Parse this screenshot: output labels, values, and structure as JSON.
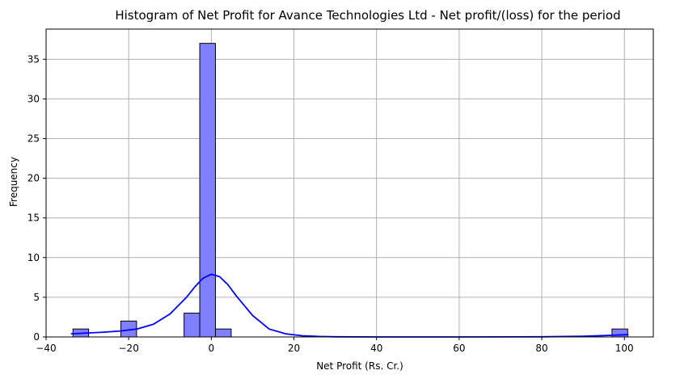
{
  "chart_data": {
    "type": "bar",
    "title": "Histogram of Net Profit for Avance Technologies Ltd - Net profit/(loss) for the period",
    "xlabel": "Net Profit (Rs. Cr.)",
    "ylabel": "Frequency",
    "xlim": [
      -40,
      107
    ],
    "ylim": [
      0,
      38.8
    ],
    "xticks": [
      -40,
      -20,
      0,
      20,
      40,
      60,
      80,
      100
    ],
    "yticks": [
      0,
      5,
      10,
      15,
      20,
      25,
      30,
      35
    ],
    "grid": true,
    "bin_width": 3.8,
    "bins": [
      {
        "x0": -33.5,
        "x1": -29.7,
        "count": 1
      },
      {
        "x0": -21.9,
        "x1": -18.1,
        "count": 2
      },
      {
        "x0": -6.6,
        "x1": -2.8,
        "count": 3
      },
      {
        "x0": -2.8,
        "x1": 1.0,
        "count": 37
      },
      {
        "x0": 1.0,
        "x1": 4.8,
        "count": 1
      },
      {
        "x0": 97.0,
        "x1": 100.8,
        "count": 1
      }
    ],
    "kde": {
      "x": [
        -34,
        -30,
        -26,
        -22,
        -18,
        -14,
        -10,
        -6,
        -4,
        -2,
        0,
        2,
        4,
        6,
        10,
        14,
        18,
        22,
        26,
        30,
        40,
        60,
        80,
        90,
        95,
        100,
        101
      ],
      "y": [
        0.4,
        0.5,
        0.6,
        0.75,
        1.0,
        1.6,
        2.9,
        5.0,
        6.3,
        7.4,
        7.9,
        7.6,
        6.6,
        5.2,
        2.7,
        1.0,
        0.4,
        0.15,
        0.06,
        0.02,
        0.0,
        0.0,
        0.02,
        0.09,
        0.17,
        0.28,
        0.3
      ]
    },
    "colors": {
      "bar_fill": "#8080ff",
      "bar_edge": "#000000",
      "kde_line": "#0000ff",
      "grid": "#b0b0b0"
    }
  }
}
